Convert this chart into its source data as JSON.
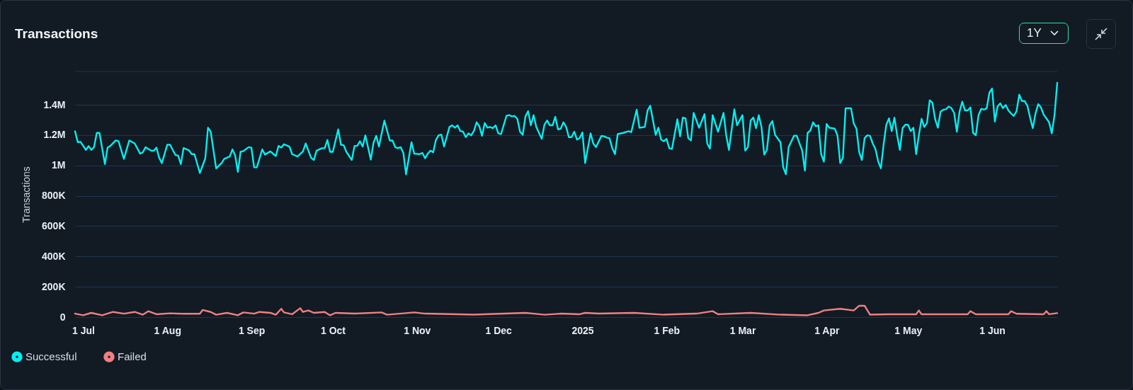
{
  "chart_data": {
    "type": "line",
    "title": "Transactions",
    "ylabel": "Transactions",
    "annotations": [
      "1Y"
    ],
    "xlim": [
      "2024-06-28",
      "2025-06-25"
    ],
    "xticks": [
      {
        "value": "2024-07-01",
        "label": "1 Jul"
      },
      {
        "value": "2024-08-01",
        "label": "1 Aug"
      },
      {
        "value": "2024-09-01",
        "label": "1 Sep"
      },
      {
        "value": "2024-10-01",
        "label": "1 Oct"
      },
      {
        "value": "2024-11-01",
        "label": "1 Nov"
      },
      {
        "value": "2024-12-01",
        "label": "1 Dec"
      },
      {
        "value": "2025-01-01",
        "label": "2025"
      },
      {
        "value": "2025-02-01",
        "label": "1 Feb"
      },
      {
        "value": "2025-03-01",
        "label": "1 Mar"
      },
      {
        "value": "2025-04-01",
        "label": "1 Apr"
      },
      {
        "value": "2025-05-01",
        "label": "1 May"
      },
      {
        "value": "2025-06-01",
        "label": "1 Jun"
      }
    ],
    "ylim": [
      0,
      1620000
    ],
    "yticks": [
      0,
      {
        "value": 200000,
        "label": "200K"
      },
      {
        "value": 400000,
        "label": "400K"
      },
      {
        "value": 600000,
        "label": "600K"
      },
      {
        "value": 800000,
        "label": "800K"
      },
      {
        "value": 1000000,
        "label": "1M"
      },
      {
        "value": 1200000,
        "label": "1.2M"
      },
      {
        "value": 1400000,
        "label": "1.4M"
      }
    ],
    "grid": "y",
    "legend": "bottom left",
    "marker": "none",
    "line_style": "solid",
    "series": [
      {
        "name": "Successful",
        "color": "#00f0f0",
        "x": [
          "2024-06-28",
          "2024-06-29",
          "2024-06-30",
          "2024-07-02",
          "2024-07-03",
          "2024-07-04",
          "2024-07-05",
          "2024-07-06",
          "2024-07-07",
          "2024-07-09",
          "2024-07-10",
          "2024-07-11",
          "2024-07-13",
          "2024-07-14",
          "2024-07-16",
          "2024-07-18",
          "2024-07-20",
          "2024-07-22",
          "2024-07-23",
          "2024-07-24",
          "2024-07-26",
          "2024-07-27",
          "2024-07-28",
          "2024-07-29",
          "2024-07-30",
          "2024-08-01",
          "2024-08-02",
          "2024-08-04",
          "2024-08-05",
          "2024-08-06",
          "2024-08-07",
          "2024-08-09",
          "2024-08-10",
          "2024-08-11",
          "2024-08-13",
          "2024-08-15",
          "2024-08-16",
          "2024-08-17",
          "2024-08-19",
          "2024-08-21",
          "2024-08-22",
          "2024-08-24",
          "2024-08-25",
          "2024-08-26",
          "2024-08-27",
          "2024-08-28",
          "2024-08-29",
          "2024-08-31",
          "2024-09-01",
          "2024-09-02",
          "2024-09-03",
          "2024-09-05",
          "2024-09-06",
          "2024-09-08",
          "2024-09-10",
          "2024-09-11",
          "2024-09-12",
          "2024-09-13",
          "2024-09-15",
          "2024-09-16",
          "2024-09-18",
          "2024-09-20",
          "2024-09-21",
          "2024-09-23",
          "2024-09-24",
          "2024-09-25",
          "2024-09-27",
          "2024-09-28",
          "2024-09-29",
          "2024-09-30",
          "2024-10-01",
          "2024-10-03",
          "2024-10-04",
          "2024-10-05",
          "2024-10-06",
          "2024-10-08",
          "2024-10-09",
          "2024-10-10",
          "2024-10-11",
          "2024-10-12",
          "2024-10-13",
          "2024-10-15",
          "2024-10-16",
          "2024-10-17",
          "2024-10-18",
          "2024-10-20",
          "2024-10-22",
          "2024-10-23",
          "2024-10-24",
          "2024-10-25",
          "2024-10-26",
          "2024-10-27",
          "2024-10-28",
          "2024-10-30",
          "2024-10-31",
          "2024-11-02",
          "2024-11-03",
          "2024-11-04",
          "2024-11-05",
          "2024-11-06",
          "2024-11-07",
          "2024-11-08",
          "2024-11-09",
          "2024-11-10",
          "2024-11-11",
          "2024-11-13",
          "2024-11-14",
          "2024-11-15",
          "2024-11-16",
          "2024-11-17",
          "2024-11-18",
          "2024-11-19",
          "2024-11-20",
          "2024-11-21",
          "2024-11-22",
          "2024-11-23",
          "2024-11-24",
          "2024-11-25",
          "2024-11-26",
          "2024-11-27",
          "2024-11-28",
          "2024-11-29",
          "2024-11-30",
          "2024-12-01",
          "2024-12-02",
          "2024-12-04",
          "2024-12-05",
          "2024-12-06",
          "2024-12-07",
          "2024-12-08",
          "2024-12-09",
          "2024-12-10",
          "2024-12-11",
          "2024-12-12",
          "2024-12-13",
          "2024-12-14",
          "2024-12-15",
          "2024-12-17",
          "2024-12-18",
          "2024-12-19",
          "2024-12-20",
          "2024-12-21",
          "2024-12-22",
          "2024-12-23",
          "2024-12-24",
          "2024-12-25",
          "2024-12-26",
          "2024-12-27",
          "2024-12-28",
          "2024-12-29",
          "2024-12-30",
          "2024-12-31",
          "2025-01-01",
          "2025-01-02",
          "2025-01-04",
          "2025-01-05",
          "2025-01-06",
          "2025-01-08",
          "2025-01-09",
          "2025-01-10",
          "2025-01-11",
          "2025-01-12",
          "2025-01-13",
          "2025-01-14",
          "2025-01-16",
          "2025-01-18",
          "2025-01-19",
          "2025-01-21",
          "2025-01-22",
          "2025-01-24",
          "2025-01-25",
          "2025-01-26",
          "2025-01-28",
          "2025-01-29",
          "2025-01-30",
          "2025-01-31",
          "2025-02-01",
          "2025-02-02",
          "2025-02-03",
          "2025-02-05",
          "2025-02-06",
          "2025-02-07",
          "2025-02-08",
          "2025-02-09",
          "2025-02-10",
          "2025-02-11",
          "2025-02-13",
          "2025-02-15",
          "2025-02-16",
          "2025-02-17",
          "2025-02-18",
          "2025-02-20",
          "2025-02-22",
          "2025-02-23",
          "2025-02-24",
          "2025-02-26",
          "2025-02-27",
          "2025-03-01",
          "2025-03-02",
          "2025-03-03",
          "2025-03-04",
          "2025-03-05",
          "2025-03-06",
          "2025-03-07",
          "2025-03-08",
          "2025-03-09",
          "2025-03-10",
          "2025-03-11",
          "2025-03-12",
          "2025-03-13",
          "2025-03-15",
          "2025-03-16",
          "2025-03-17",
          "2025-03-18",
          "2025-03-20",
          "2025-03-21",
          "2025-03-23",
          "2025-03-24",
          "2025-03-25",
          "2025-03-26",
          "2025-03-27",
          "2025-03-28",
          "2025-03-29",
          "2025-03-30",
          "2025-03-31",
          "2025-04-01",
          "2025-04-02",
          "2025-04-04",
          "2025-04-05",
          "2025-04-06",
          "2025-04-07",
          "2025-04-08",
          "2025-04-10",
          "2025-04-11",
          "2025-04-12",
          "2025-04-13",
          "2025-04-14",
          "2025-04-15",
          "2025-04-16",
          "2025-04-17",
          "2025-04-18",
          "2025-04-19",
          "2025-04-20",
          "2025-04-21",
          "2025-04-22",
          "2025-04-23",
          "2025-04-24",
          "2025-04-25",
          "2025-04-26",
          "2025-04-27",
          "2025-04-28",
          "2025-04-29",
          "2025-04-30",
          "2025-05-01",
          "2025-05-02",
          "2025-05-03",
          "2025-05-04",
          "2025-05-05",
          "2025-05-06",
          "2025-05-07",
          "2025-05-08",
          "2025-05-09",
          "2025-05-10",
          "2025-05-11",
          "2025-05-12",
          "2025-05-13",
          "2025-05-14",
          "2025-05-15",
          "2025-05-16",
          "2025-05-17",
          "2025-05-18",
          "2025-05-19",
          "2025-05-20",
          "2025-05-21",
          "2025-05-22",
          "2025-05-23",
          "2025-05-24",
          "2025-05-25",
          "2025-05-26",
          "2025-05-27",
          "2025-05-28",
          "2025-05-29",
          "2025-05-30",
          "2025-05-31",
          "2025-06-01",
          "2025-06-02",
          "2025-06-03",
          "2025-06-04",
          "2025-06-05",
          "2025-06-06",
          "2025-06-07",
          "2025-06-08",
          "2025-06-09",
          "2025-06-10",
          "2025-06-11",
          "2025-06-12",
          "2025-06-13",
          "2025-06-14",
          "2025-06-15",
          "2025-06-16",
          "2025-06-17",
          "2025-06-18",
          "2025-06-19",
          "2025-06-20",
          "2025-06-21",
          "2025-06-22",
          "2025-06-23",
          "2025-06-24",
          "2025-06-25"
        ],
        "values": [
          1226000,
          1153000,
          1156000,
          1103000,
          1128000,
          1103000,
          1121000,
          1215000,
          1215000,
          1009000,
          1118000,
          1129000,
          1165000,
          1161000,
          1044000,
          1165000,
          1145000,
          1078000,
          1088000,
          1121000,
          1098000,
          1097000,
          1118000,
          1051000,
          1016000,
          1137000,
          1137000,
          1069000,
          1065000,
          1009000,
          1115000,
          1100000,
          1075000,
          1075000,
          950000,
          1047000,
          1249000,
          1223000,
          981000,
          1016000,
          1044000,
          1059000,
          1106000,
          1067000,
          958000,
          1090000,
          1095000,
          1121000,
          1117000,
          988000,
          988000,
          1106000,
          1072000,
          1093000,
          1062000,
          1129000,
          1118000,
          1140000,
          1125000,
          1075000,
          1059000,
          1093000,
          1145000,
          1051000,
          1036000,
          1098000,
          1114000,
          1114000,
          1168000,
          1090000,
          1090000,
          1238000,
          1137000,
          1134000,
          1090000,
          1036000,
          1129000,
          1129000,
          1160000,
          1125000,
          1199000,
          1039000,
          1150000,
          1196000,
          1125000,
          1296000,
          1165000,
          1165000,
          1121000,
          1114000,
          1121000,
          1083000,
          942000,
          1153000,
          1078000,
          1075000,
          1083000,
          1048000,
          1078000,
          1098000,
          1087000,
          1168000,
          1199000,
          1204000,
          1125000,
          1254000,
          1265000,
          1249000,
          1265000,
          1227000,
          1223000,
          1187000,
          1212000,
          1199000,
          1227000,
          1285000,
          1259000,
          1196000,
          1280000,
          1249000,
          1254000,
          1246000,
          1265000,
          1212000,
          1207000,
          1327000,
          1332000,
          1324000,
          1327000,
          1308000,
          1223000,
          1202000,
          1324000,
          1358000,
          1265000,
          1332000,
          1254000,
          1176000,
          1269000,
          1297000,
          1265000,
          1265000,
          1321000,
          1238000,
          1243000,
          1285000,
          1254000,
          1187000,
          1187000,
          1223000,
          1171000,
          1181000,
          1218000,
          1016000,
          1212000,
          1145000,
          1121000,
          1195000,
          1192000,
          1184000,
          1179000,
          1114000,
          1075000,
          1207000,
          1215000,
          1226000,
          1220000,
          1368000,
          1249000,
          1254000,
          1363000,
          1394000,
          1202000,
          1249000,
          1171000,
          1160000,
          1176000,
          1114000,
          1109000,
          1305000,
          1192000,
          1316000,
          1311000,
          1181000,
          1165000,
          1347000,
          1249000,
          1339000,
          1145000,
          1111000,
          1332000,
          1223000,
          1347000,
          1199000,
          1103000,
          1371000,
          1265000,
          1332000,
          1098000,
          1121000,
          1296000,
          1316000,
          1246000,
          1332000,
          1254000,
          1072000,
          1103000,
          1265000,
          1293000,
          1202000,
          1153000,
          989000,
          942000,
          1121000,
          1196000,
          1196000,
          1098000,
          966000,
          1215000,
          1230000,
          1285000,
          1259000,
          1265000,
          1075000,
          1025000,
          1274000,
          1249000,
          1243000,
          1199000,
          1016000,
          1051000,
          1378000,
          1378000,
          1277000,
          1243000,
          1090000,
          1036000,
          1181000,
          1199000,
          1196000,
          1145000,
          1109000,
          1028000,
          981000,
          1137000,
          1269000,
          1311000,
          1227000,
          1316000,
          1199000,
          1103000,
          1246000,
          1269000,
          1269000,
          1227000,
          1249000,
          1075000,
          1199000,
          1308000,
          1254000,
          1280000,
          1430000,
          1414000,
          1305000,
          1249000,
          1355000,
          1368000,
          1371000,
          1389000,
          1378000,
          1347000,
          1223000,
          1355000,
          1421000,
          1363000,
          1363000,
          1383000,
          1215000,
          1199000,
          1332000,
          1374000,
          1368000,
          1378000,
          1480000,
          1508000,
          1290000,
          1389000,
          1410000,
          1378000,
          1399000,
          1363000,
          1343000,
          1327000,
          1358000,
          1467000,
          1425000,
          1425000,
          1394000,
          1316000,
          1246000,
          1343000,
          1405000,
          1383000,
          1336000,
          1311000,
          1285000,
          1212000,
          1332000,
          1545000
        ]
      },
      {
        "name": "Failed",
        "color": "#f08080",
        "x": [
          "2024-06-28",
          "2024-07-01",
          "2024-07-04",
          "2024-07-08",
          "2024-07-12",
          "2024-07-16",
          "2024-07-20",
          "2024-07-23",
          "2024-07-25",
          "2024-07-28",
          "2024-08-02",
          "2024-08-07",
          "2024-08-13",
          "2024-08-14",
          "2024-08-17",
          "2024-08-19",
          "2024-08-23",
          "2024-08-27",
          "2024-08-29",
          "2024-09-02",
          "2024-09-04",
          "2024-09-08",
          "2024-09-10",
          "2024-09-12",
          "2024-09-13",
          "2024-09-16",
          "2024-09-19",
          "2024-09-20",
          "2024-09-22",
          "2024-09-24",
          "2024-09-28",
          "2024-09-30",
          "2024-10-02",
          "2024-10-09",
          "2024-10-19",
          "2024-10-21",
          "2024-10-31",
          "2024-11-04",
          "2024-11-22",
          "2024-12-11",
          "2024-12-18",
          "2024-12-24",
          "2024-12-31",
          "2025-01-02",
          "2025-01-07",
          "2025-01-20",
          "2025-01-31",
          "2025-02-12",
          "2025-02-18",
          "2025-02-20",
          "2025-03-04",
          "2025-03-15",
          "2025-03-25",
          "2025-03-29",
          "2025-03-31",
          "2025-04-06",
          "2025-04-11",
          "2025-04-13",
          "2025-04-15",
          "2025-04-17",
          "2025-04-24",
          "2025-05-04",
          "2025-05-05",
          "2025-05-06",
          "2025-05-23",
          "2025-05-24",
          "2025-05-26",
          "2025-06-07",
          "2025-06-08",
          "2025-06-10",
          "2025-06-20",
          "2025-06-21",
          "2025-06-22",
          "2025-06-25"
        ],
        "values": [
          23000,
          12000,
          28000,
          12000,
          34000,
          23000,
          34000,
          16000,
          39000,
          19000,
          25000,
          22000,
          22000,
          47000,
          34000,
          16000,
          28000,
          12000,
          31000,
          23000,
          34000,
          28000,
          16000,
          55000,
          31000,
          19000,
          59000,
          34000,
          44000,
          28000,
          34000,
          12000,
          28000,
          23000,
          31000,
          16000,
          31000,
          23000,
          16000,
          28000,
          16000,
          23000,
          19000,
          28000,
          23000,
          28000,
          16000,
          23000,
          39000,
          19000,
          28000,
          16000,
          12000,
          28000,
          44000,
          55000,
          44000,
          75000,
          75000,
          16000,
          19000,
          19000,
          44000,
          19000,
          19000,
          39000,
          19000,
          19000,
          39000,
          22000,
          19000,
          39000,
          19000,
          26000
        ]
      }
    ]
  }
}
